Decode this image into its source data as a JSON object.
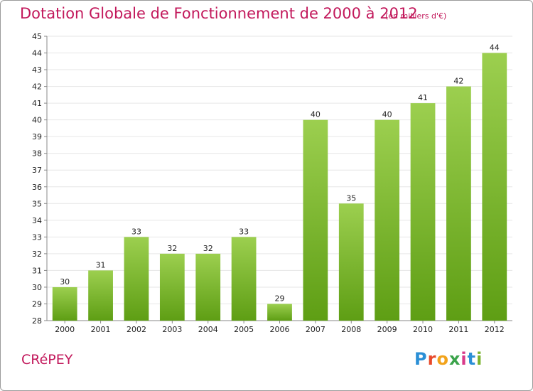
{
  "header": {
    "title": "Dotation Globale de Fonctionnement de 2000 à 2012",
    "subtitle": "(en milliers d'€)"
  },
  "commune": "CRéPEY",
  "logo": {
    "text": "Proxiti",
    "letter_colors": [
      "#2b8fd6",
      "#e8492b",
      "#f2a31b",
      "#3aa34a",
      "#d93a8a",
      "#2b8fd6",
      "#7ab32e"
    ]
  },
  "colors": {
    "bar_top": "#9ccf4f",
    "bar_bottom": "#5e9e14",
    "grid": "#e6e6e6",
    "axis": "#888888",
    "title": "#c2185b"
  },
  "chart_data": {
    "type": "bar",
    "categories": [
      "2000",
      "2001",
      "2002",
      "2003",
      "2004",
      "2005",
      "2006",
      "2007",
      "2008",
      "2009",
      "2010",
      "2011",
      "2012"
    ],
    "values": [
      30,
      31,
      33,
      32,
      32,
      33,
      29,
      40,
      35,
      40,
      41,
      42,
      44
    ],
    "title": "Dotation Globale de Fonctionnement de 2000 à 2012",
    "subtitle": "(en milliers d'€)",
    "ylim": [
      28,
      45
    ],
    "yticks": [
      28,
      29,
      30,
      31,
      32,
      33,
      34,
      35,
      36,
      37,
      38,
      39,
      40,
      41,
      42,
      43,
      44,
      45
    ],
    "grid": true,
    "legend": "none"
  }
}
